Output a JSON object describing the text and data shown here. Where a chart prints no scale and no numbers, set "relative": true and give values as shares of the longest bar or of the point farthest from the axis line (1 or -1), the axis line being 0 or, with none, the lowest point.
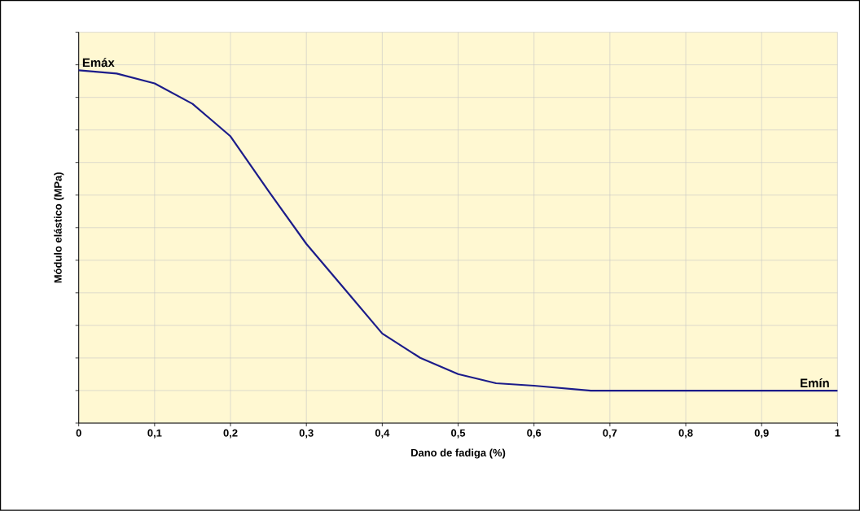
{
  "chart_data": {
    "type": "line",
    "xlabel": "Dano de fadiga (%)",
    "ylabel": "Módulo elástico (MPa)",
    "relative": true,
    "color": "#1c1c8a",
    "line_style": "solid",
    "grid": true,
    "x": [
      0,
      0.05,
      0.1,
      0.15,
      0.2,
      0.25,
      0.3,
      0.35,
      0.4,
      0.45,
      0.5,
      0.55,
      0.6,
      0.675,
      0.8,
      0.9,
      1.0
    ],
    "values": [
      1.0,
      0.991,
      0.963,
      0.905,
      0.813,
      0.658,
      0.508,
      0.381,
      0.254,
      0.185,
      0.139,
      0.113,
      0.106,
      0.092,
      0.092,
      0.092,
      0.092
    ],
    "xlim": [
      0,
      1
    ],
    "xticks": [
      0,
      {
        "value": 0.1,
        "label": "0,1"
      },
      {
        "value": 0.2,
        "label": "0,2"
      },
      {
        "value": 0.3,
        "label": "0,3"
      },
      {
        "value": 0.4,
        "label": "0,4"
      },
      {
        "value": 0.5,
        "label": "0,5"
      },
      {
        "value": 0.6,
        "label": "0,6"
      },
      {
        "value": 0.7,
        "label": "0,7"
      },
      {
        "value": 0.8,
        "label": "0,8"
      },
      {
        "value": 0.9,
        "label": "0,9"
      },
      1
    ],
    "annotations": [
      {
        "text": "Emáx",
        "x": 0,
        "y": 1.0
      },
      {
        "text": "Emín",
        "x": 0.97,
        "y": 0.092
      }
    ]
  }
}
